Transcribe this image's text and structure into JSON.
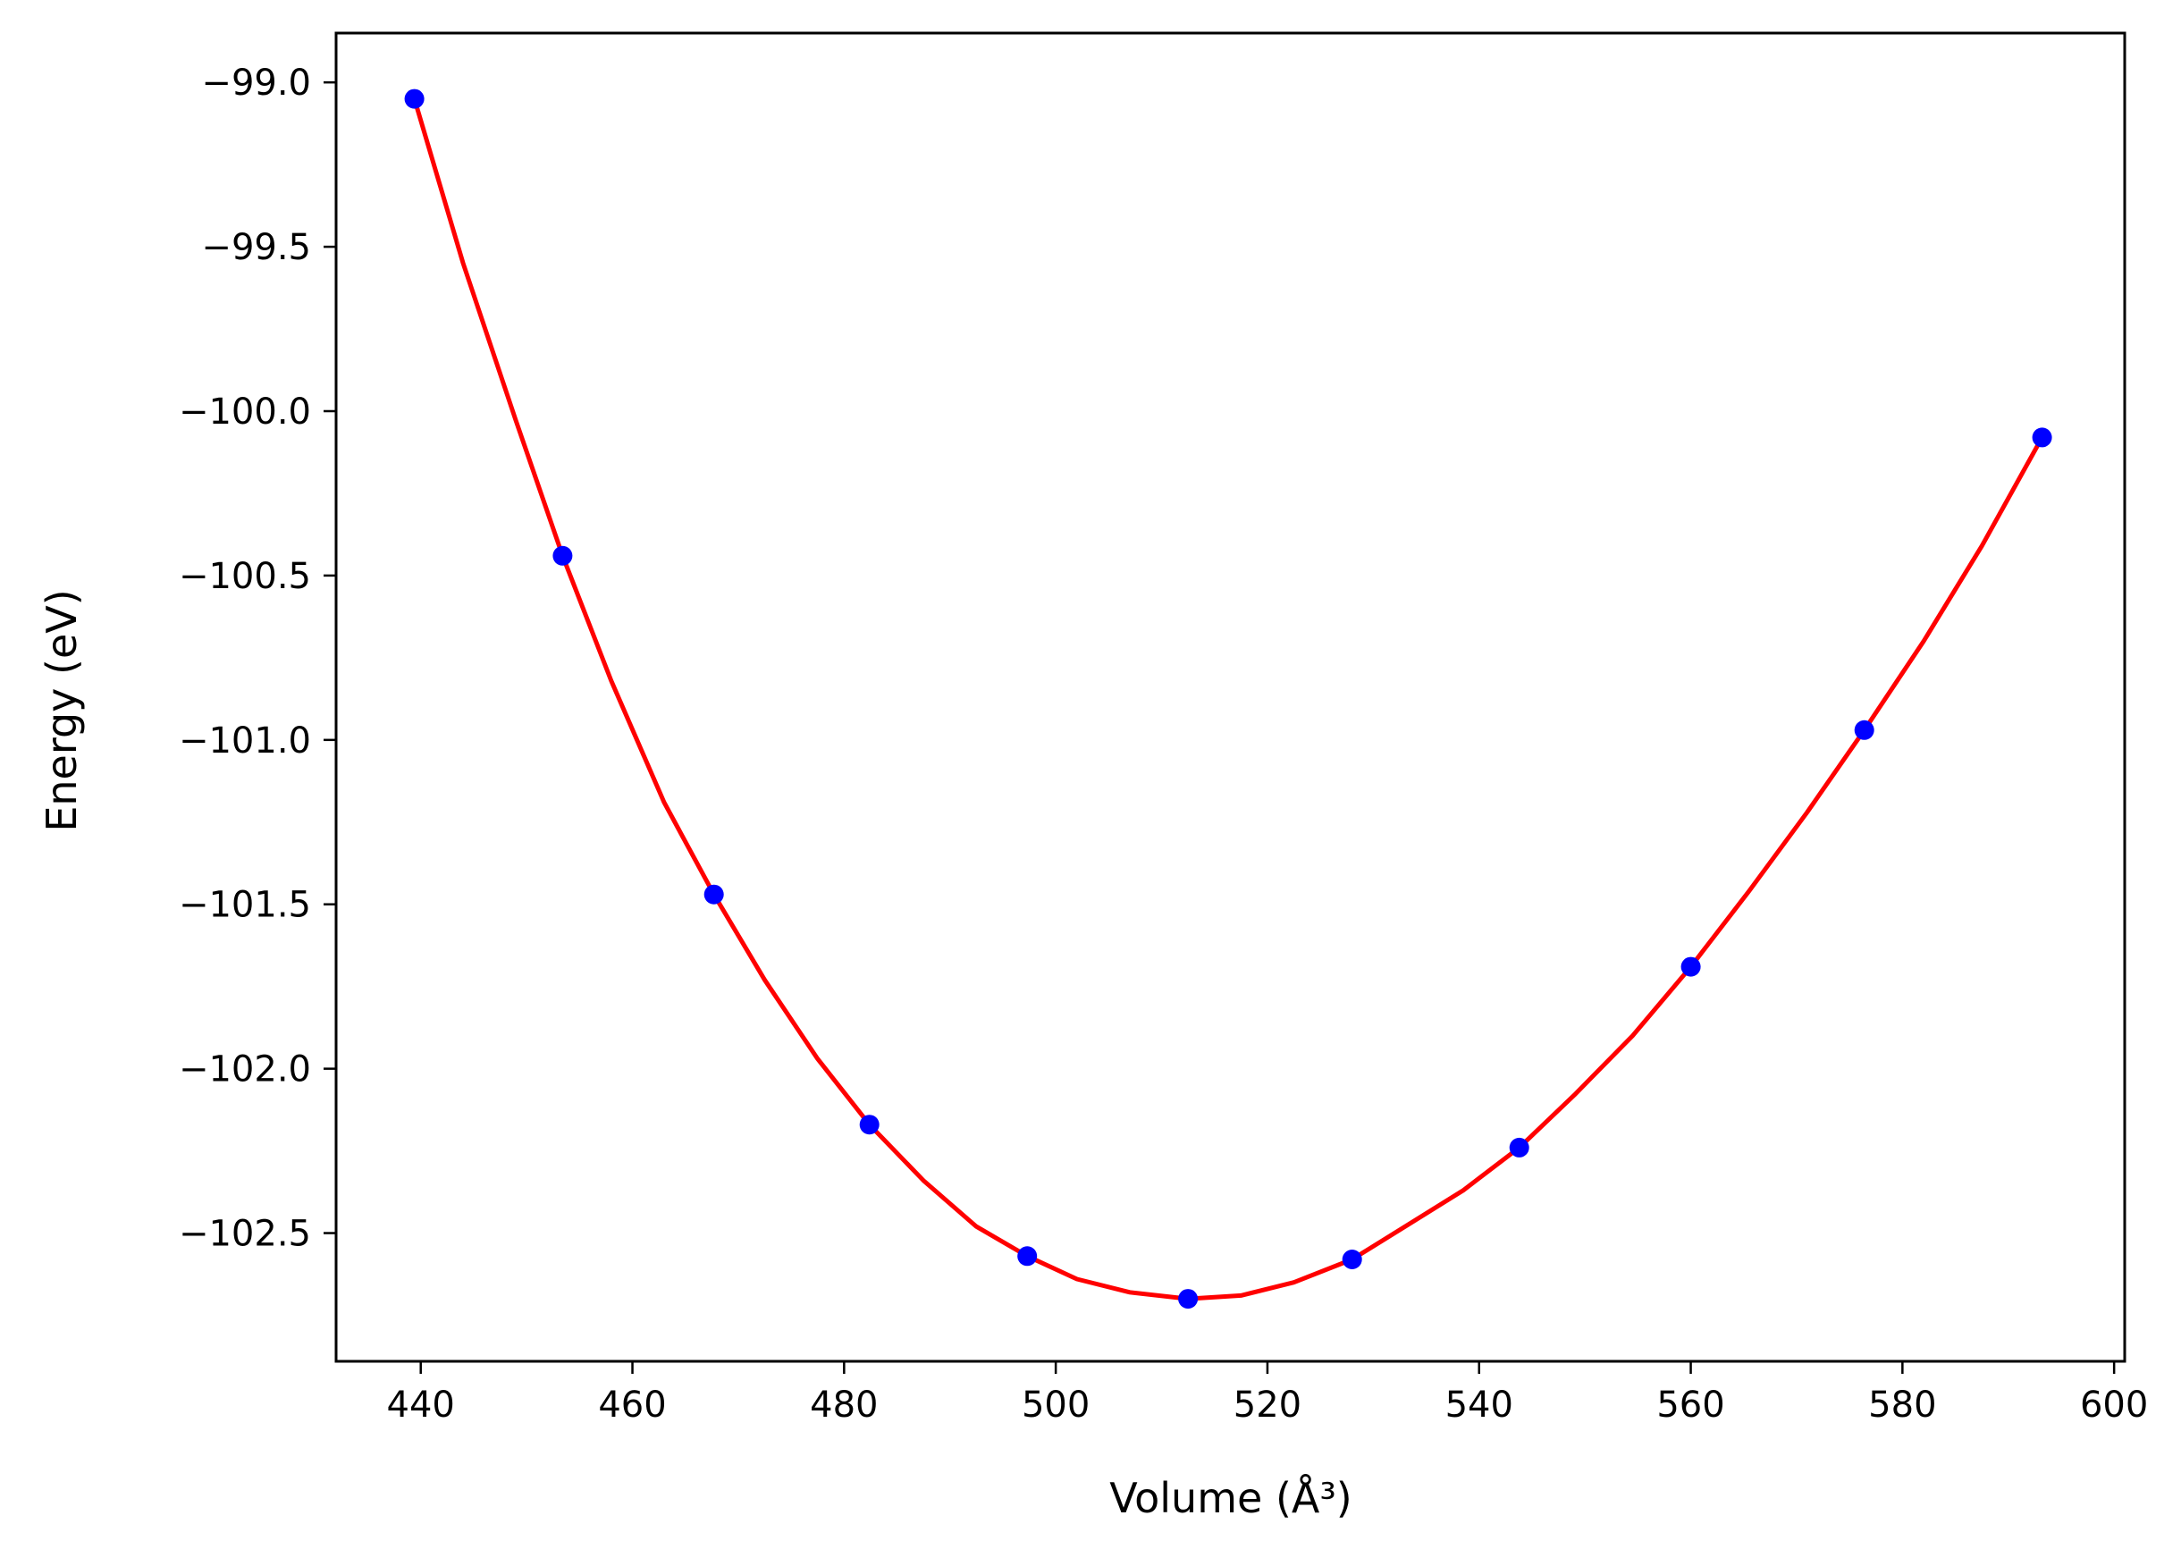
{
  "chart_data": {
    "type": "scatter",
    "xlabel": "Volume (Å³)",
    "ylabel": "Energy (eV)",
    "xlim": [
      432,
      601
    ],
    "ylim": [
      -102.89,
      -98.85
    ],
    "xticks": [
      440,
      460,
      480,
      500,
      520,
      540,
      560,
      580,
      600
    ],
    "yticks": [
      -99.0,
      -99.5,
      -100.0,
      -100.5,
      -101.0,
      -101.5,
      -102.0,
      -102.5
    ],
    "xtick_labels": [
      "440",
      "460",
      "480",
      "500",
      "520",
      "540",
      "560",
      "580",
      "600"
    ],
    "ytick_labels": [
      "−99.0",
      "−99.5",
      "−100.0",
      "−100.5",
      "−101.0",
      "−101.5",
      "−102.0",
      "−102.5"
    ],
    "grid": false,
    "series": [
      {
        "kind": "points",
        "color": "#0000ff",
        "x": [
          439.4,
          453.4,
          467.7,
          482.4,
          497.3,
          512.5,
          528.0,
          543.8,
          560.0,
          576.4,
          593.2
        ],
        "y": [
          -99.05,
          -100.44,
          -101.47,
          -102.17,
          -102.57,
          -102.7,
          -102.58,
          -102.24,
          -101.69,
          -100.97,
          -100.08
        ]
      },
      {
        "kind": "fit-curve",
        "color": "#ff0000",
        "x": [
          439.4,
          444.0,
          449.0,
          453.4,
          458.0,
          463.0,
          467.7,
          472.5,
          477.5,
          482.4,
          487.5,
          492.5,
          497.3,
          502.0,
          507.0,
          512.5,
          517.5,
          522.5,
          528.0,
          533.0,
          538.5,
          543.8,
          549.0,
          554.5,
          560.0,
          565.5,
          571.0,
          576.4,
          582.0,
          587.5,
          593.2
        ],
        "y": [
          -99.05,
          -99.55,
          -100.03,
          -100.44,
          -100.82,
          -101.19,
          -101.47,
          -101.73,
          -101.97,
          -102.17,
          -102.34,
          -102.48,
          -102.57,
          -102.64,
          -102.68,
          -102.7,
          -102.69,
          -102.65,
          -102.58,
          -102.48,
          -102.37,
          -102.24,
          -102.08,
          -101.9,
          -101.69,
          -101.46,
          -101.22,
          -100.97,
          -100.7,
          -100.41,
          -100.08
        ]
      }
    ]
  }
}
